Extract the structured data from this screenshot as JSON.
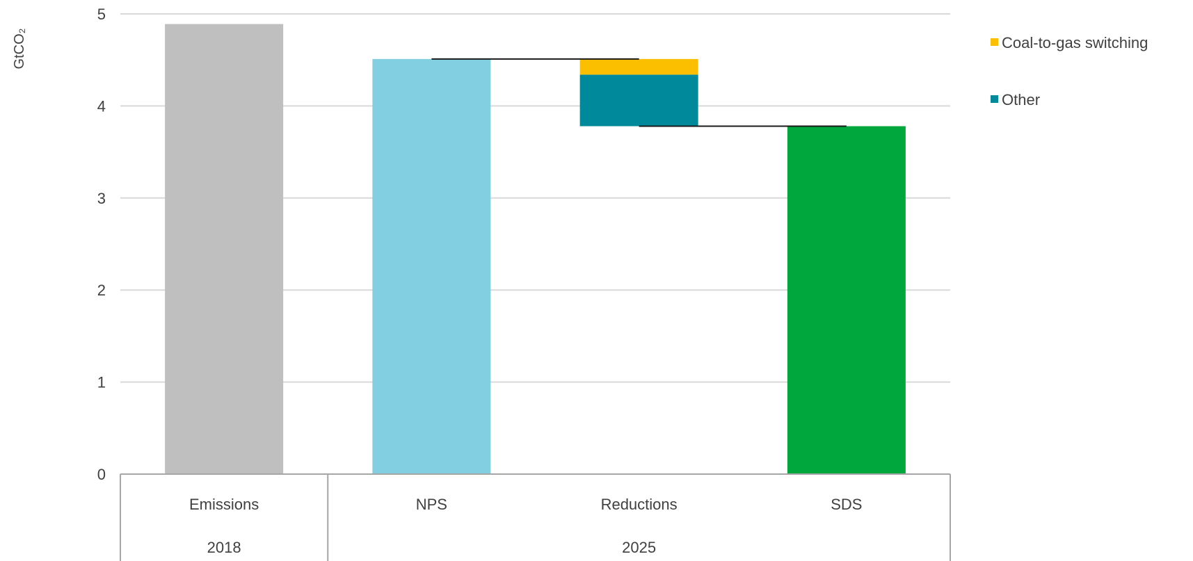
{
  "chart_data": {
    "type": "bar",
    "subtype": "waterfall",
    "ylabel": "GtCO₂",
    "ylim": [
      0,
      5
    ],
    "yticks": [
      "0",
      "1",
      "2",
      "3",
      "4",
      "5"
    ],
    "grid": true,
    "legend_placement": "right",
    "categories": [
      "Emissions",
      "NPS",
      "Reductions",
      "SDS"
    ],
    "groups": [
      {
        "label": "2018",
        "categories": [
          "Emissions"
        ]
      },
      {
        "label": "2025",
        "categories": [
          "NPS",
          "Reductions",
          "SDS"
        ]
      }
    ],
    "bars": [
      {
        "category": "Emissions",
        "value": 4.89,
        "color": "#bfbfbf"
      },
      {
        "category": "NPS",
        "value": 4.51,
        "color": "#82cfe2"
      },
      {
        "category": "Reductions",
        "base": 3.78,
        "segments": [
          {
            "series": "Other",
            "value": 0.56,
            "color": "#00889b"
          },
          {
            "series": "Coal-to-gas switching",
            "value": 0.17,
            "color": "#fcbf00"
          }
        ]
      },
      {
        "category": "SDS",
        "value": 3.78,
        "color": "#00a73c"
      }
    ],
    "connectors": [
      {
        "from": "NPS",
        "to": "Reductions",
        "level": 4.51
      },
      {
        "from": "Reductions",
        "to": "SDS",
        "level": 3.78
      }
    ],
    "legend": [
      {
        "label": "Coal-to-gas switching",
        "color": "#fcbf00"
      },
      {
        "label": "Other",
        "color": "#00889b"
      }
    ]
  }
}
